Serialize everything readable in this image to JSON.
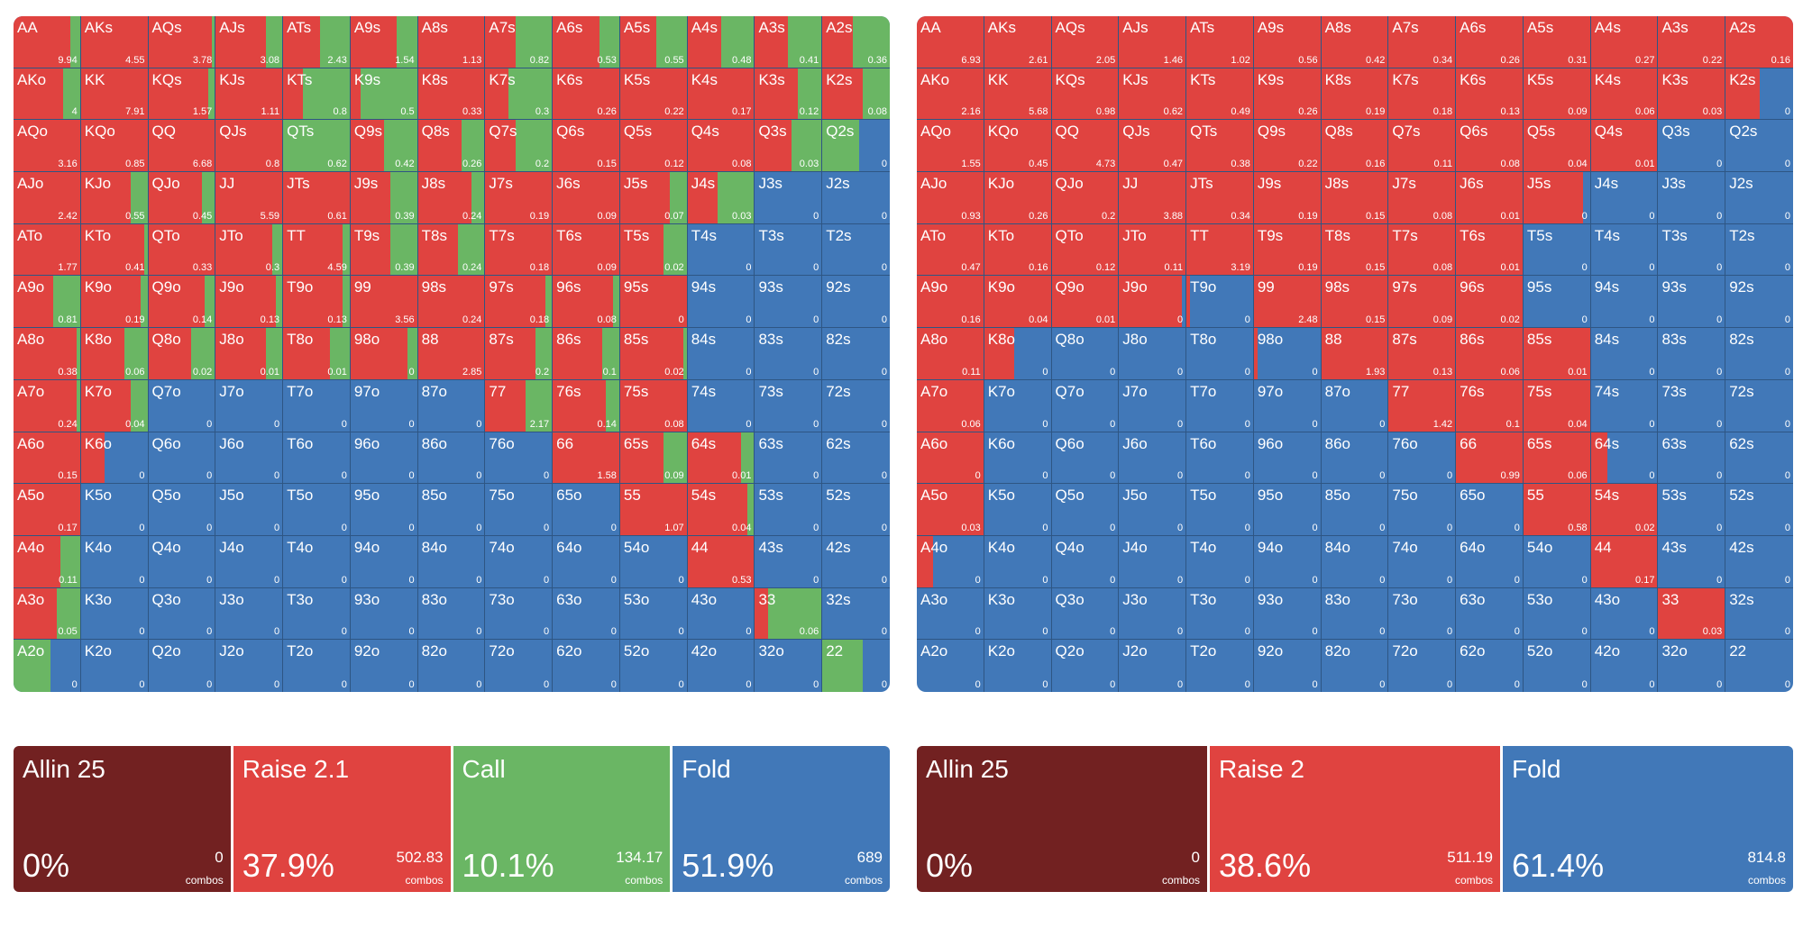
{
  "colors": {
    "allin": "#722121",
    "raise": "#e04340",
    "call": "#6ab664",
    "fold": "#4178b8"
  },
  "hands": [
    [
      "AA",
      "AKs",
      "AQs",
      "AJs",
      "ATs",
      "A9s",
      "A8s",
      "A7s",
      "A6s",
      "A5s",
      "A4s",
      "A3s",
      "A2s"
    ],
    [
      "AKo",
      "KK",
      "KQs",
      "KJs",
      "KTs",
      "K9s",
      "K8s",
      "K7s",
      "K6s",
      "K5s",
      "K4s",
      "K3s",
      "K2s"
    ],
    [
      "AQo",
      "KQo",
      "QQ",
      "QJs",
      "QTs",
      "Q9s",
      "Q8s",
      "Q7s",
      "Q6s",
      "Q5s",
      "Q4s",
      "Q3s",
      "Q2s"
    ],
    [
      "AJo",
      "KJo",
      "QJo",
      "JJ",
      "JTs",
      "J9s",
      "J8s",
      "J7s",
      "J6s",
      "J5s",
      "J4s",
      "J3s",
      "J2s"
    ],
    [
      "ATo",
      "KTo",
      "QTo",
      "JTo",
      "TT",
      "T9s",
      "T8s",
      "T7s",
      "T6s",
      "T5s",
      "T4s",
      "T3s",
      "T2s"
    ],
    [
      "A9o",
      "K9o",
      "Q9o",
      "J9o",
      "T9o",
      "99",
      "98s",
      "97s",
      "96s",
      "95s",
      "94s",
      "93s",
      "92s"
    ],
    [
      "A8o",
      "K8o",
      "Q8o",
      "J8o",
      "T8o",
      "98o",
      "88",
      "87s",
      "86s",
      "85s",
      "84s",
      "83s",
      "82s"
    ],
    [
      "A7o",
      "K7o",
      "Q7o",
      "J7o",
      "T7o",
      "97o",
      "87o",
      "77",
      "76s",
      "75s",
      "74s",
      "73s",
      "72s"
    ],
    [
      "A6o",
      "K6o",
      "Q6o",
      "J6o",
      "T6o",
      "96o",
      "86o",
      "76o",
      "66",
      "65s",
      "64s",
      "63s",
      "62s"
    ],
    [
      "A5o",
      "K5o",
      "Q5o",
      "J5o",
      "T5o",
      "95o",
      "85o",
      "75o",
      "65o",
      "55",
      "54s",
      "53s",
      "52s"
    ],
    [
      "A4o",
      "K4o",
      "Q4o",
      "J4o",
      "T4o",
      "94o",
      "84o",
      "74o",
      "64o",
      "54o",
      "44",
      "43s",
      "42s"
    ],
    [
      "A3o",
      "K3o",
      "Q3o",
      "J3o",
      "T3o",
      "93o",
      "83o",
      "73o",
      "63o",
      "53o",
      "43o",
      "33",
      "32s"
    ],
    [
      "A2o",
      "K2o",
      "Q2o",
      "J2o",
      "T2o",
      "92o",
      "82o",
      "72o",
      "62o",
      "52o",
      "42o",
      "32o",
      "22"
    ]
  ],
  "left": {
    "values": [
      [
        "9.94",
        "4.55",
        "3.78",
        "3.08",
        "2.43",
        "1.54",
        "1.13",
        "0.82",
        "0.53",
        "0.55",
        "0.48",
        "0.41",
        "0.36"
      ],
      [
        "4",
        "7.91",
        "1.57",
        "1.11",
        "0.8",
        "0.5",
        "0.33",
        "0.3",
        "0.26",
        "0.22",
        "0.17",
        "0.12",
        "0.08"
      ],
      [
        "3.16",
        "0.85",
        "6.68",
        "0.8",
        "0.62",
        "0.42",
        "0.26",
        "0.2",
        "0.15",
        "0.12",
        "0.08",
        "0.03",
        "0"
      ],
      [
        "2.42",
        "0.55",
        "0.45",
        "5.59",
        "0.61",
        "0.39",
        "0.24",
        "0.19",
        "0.09",
        "0.07",
        "0.03",
        "0",
        "0"
      ],
      [
        "1.77",
        "0.41",
        "0.33",
        "0.3",
        "4.59",
        "0.39",
        "0.24",
        "0.18",
        "0.09",
        "0.02",
        "0",
        "0",
        "0"
      ],
      [
        "0.81",
        "0.19",
        "0.14",
        "0.13",
        "0.13",
        "3.56",
        "0.24",
        "0.18",
        "0.08",
        "0",
        "0",
        "0",
        "0"
      ],
      [
        "0.38",
        "0.06",
        "0.02",
        "0.01",
        "0.01",
        "0",
        "2.85",
        "0.2",
        "0.1",
        "0.02",
        "0",
        "0",
        "0"
      ],
      [
        "0.24",
        "0.04",
        "0",
        "0",
        "0",
        "0",
        "0",
        "2.17",
        "0.14",
        "0.08",
        "0",
        "0",
        "0"
      ],
      [
        "0.15",
        "0",
        "0",
        "0",
        "0",
        "0",
        "0",
        "0",
        "1.58",
        "0.09",
        "0.01",
        "0",
        "0"
      ],
      [
        "0.17",
        "0",
        "0",
        "0",
        "0",
        "0",
        "0",
        "0",
        "0",
        "1.07",
        "0.04",
        "0",
        "0"
      ],
      [
        "0.11",
        "0",
        "0",
        "0",
        "0",
        "0",
        "0",
        "0",
        "0",
        "0",
        "0.53",
        "0",
        "0"
      ],
      [
        "0.05",
        "0",
        "0",
        "0",
        "0",
        "0",
        "0",
        "0",
        "0",
        "0",
        "0",
        "0.06",
        "0"
      ],
      [
        "0",
        "0",
        "0",
        "0",
        "0",
        "0",
        "0",
        "0",
        "0",
        "0",
        "0",
        "0",
        "0"
      ]
    ],
    "freqs": [
      [
        [
          0.85,
          0.15
        ],
        [
          1,
          0
        ],
        [
          0.95,
          0.05
        ],
        [
          0.75,
          0.25
        ],
        [
          0.55,
          0.45
        ],
        [
          0.7,
          0.3
        ],
        [
          1,
          0
        ],
        [
          0.45,
          0.55
        ],
        [
          0.7,
          0.3
        ],
        [
          0.55,
          0.45
        ],
        [
          0.5,
          0.5
        ],
        [
          0.5,
          0.5
        ],
        [
          0.45,
          0.55
        ]
      ],
      [
        [
          0.75,
          0.25
        ],
        [
          1,
          0
        ],
        [
          0.9,
          0.1
        ],
        [
          1,
          0
        ],
        [
          0.3,
          0.7
        ],
        [
          0.15,
          0.85
        ],
        [
          1,
          0
        ],
        [
          0.35,
          0.65
        ],
        [
          1,
          0
        ],
        [
          1,
          0
        ],
        [
          1,
          0
        ],
        [
          0.65,
          0.35
        ],
        [
          0.6,
          0.4
        ]
      ],
      [
        [
          1,
          0
        ],
        [
          1,
          0
        ],
        [
          1,
          0
        ],
        [
          1,
          0
        ],
        [
          0,
          1
        ],
        [
          0.5,
          0.5
        ],
        [
          0.65,
          0.35
        ],
        [
          0.45,
          0.55
        ],
        [
          1,
          0
        ],
        [
          1,
          0
        ],
        [
          1,
          0
        ],
        [
          0.55,
          0.45
        ],
        [
          0,
          0.55
        ]
      ],
      [
        [
          1,
          0
        ],
        [
          0.75,
          0.25
        ],
        [
          0.8,
          0.2
        ],
        [
          1,
          0
        ],
        [
          1,
          0
        ],
        [
          0.6,
          0.4
        ],
        [
          0.8,
          0.2
        ],
        [
          1,
          0
        ],
        [
          1,
          0
        ],
        [
          0.75,
          0.25
        ],
        [
          0.45,
          0.55
        ],
        [
          0,
          0
        ],
        [
          0,
          0
        ]
      ],
      [
        [
          1,
          0
        ],
        [
          0.95,
          0.05
        ],
        [
          1,
          0
        ],
        [
          0.85,
          0.15
        ],
        [
          0.9,
          0.1
        ],
        [
          0.6,
          0.4
        ],
        [
          0.6,
          0.4
        ],
        [
          1,
          0
        ],
        [
          1,
          0
        ],
        [
          0.65,
          0.35
        ],
        [
          0,
          0
        ],
        [
          0,
          0
        ],
        [
          0,
          0
        ]
      ],
      [
        [
          0.6,
          0.4
        ],
        [
          0.9,
          0.1
        ],
        [
          0.85,
          0.15
        ],
        [
          0.9,
          0.1
        ],
        [
          0.9,
          0.1
        ],
        [
          1,
          0
        ],
        [
          1,
          0
        ],
        [
          0.9,
          0.1
        ],
        [
          0.9,
          0.1
        ],
        [
          1,
          0
        ],
        [
          0,
          0
        ],
        [
          0,
          0
        ],
        [
          0,
          0
        ]
      ],
      [
        [
          0.95,
          0.05
        ],
        [
          0.65,
          0.35
        ],
        [
          0.65,
          0.35
        ],
        [
          0.75,
          0.25
        ],
        [
          0.7,
          0.3
        ],
        [
          0.85,
          0.15
        ],
        [
          1,
          0
        ],
        [
          0.75,
          0.25
        ],
        [
          0.75,
          0.25
        ],
        [
          0.95,
          0.05
        ],
        [
          0,
          0
        ],
        [
          0,
          0
        ],
        [
          0,
          0
        ]
      ],
      [
        [
          0.95,
          0.05
        ],
        [
          0.75,
          0.25
        ],
        [
          0,
          0
        ],
        [
          0,
          0
        ],
        [
          0,
          0
        ],
        [
          0,
          0
        ],
        [
          0,
          0
        ],
        [
          0.6,
          0.4
        ],
        [
          0.8,
          0.2
        ],
        [
          1,
          0
        ],
        [
          0,
          0
        ],
        [
          0,
          0
        ],
        [
          0,
          0
        ]
      ],
      [
        [
          1,
          0
        ],
        [
          0.35,
          0
        ],
        [
          0,
          0
        ],
        [
          0,
          0
        ],
        [
          0,
          0
        ],
        [
          0,
          0
        ],
        [
          0,
          0
        ],
        [
          0,
          0
        ],
        [
          1,
          0
        ],
        [
          0.65,
          0.35
        ],
        [
          0.8,
          0.2
        ],
        [
          0,
          0
        ],
        [
          0,
          0
        ]
      ],
      [
        [
          1,
          0
        ],
        [
          0,
          0
        ],
        [
          0,
          0
        ],
        [
          0,
          0
        ],
        [
          0,
          0
        ],
        [
          0,
          0
        ],
        [
          0,
          0
        ],
        [
          0,
          0
        ],
        [
          0,
          0
        ],
        [
          1,
          0
        ],
        [
          0.9,
          0.1
        ],
        [
          0,
          0
        ],
        [
          0,
          0
        ]
      ],
      [
        [
          0.7,
          0.3
        ],
        [
          0,
          0
        ],
        [
          0,
          0
        ],
        [
          0,
          0
        ],
        [
          0,
          0
        ],
        [
          0,
          0
        ],
        [
          0,
          0
        ],
        [
          0,
          0
        ],
        [
          0,
          0
        ],
        [
          0,
          0
        ],
        [
          1,
          0
        ],
        [
          0,
          0
        ],
        [
          0,
          0
        ]
      ],
      [
        [
          0.65,
          0.35
        ],
        [
          0,
          0
        ],
        [
          0,
          0
        ],
        [
          0,
          0
        ],
        [
          0,
          0
        ],
        [
          0,
          0
        ],
        [
          0,
          0
        ],
        [
          0,
          0
        ],
        [
          0,
          0
        ],
        [
          0,
          0
        ],
        [
          0,
          0
        ],
        [
          0.2,
          0.8
        ],
        [
          0,
          0
        ]
      ],
      [
        [
          0,
          0.55
        ],
        [
          0,
          0
        ],
        [
          0,
          0
        ],
        [
          0,
          0
        ],
        [
          0,
          0
        ],
        [
          0,
          0
        ],
        [
          0,
          0
        ],
        [
          0,
          0
        ],
        [
          0,
          0
        ],
        [
          0,
          0
        ],
        [
          0,
          0
        ],
        [
          0,
          0
        ],
        [
          0,
          0.6
        ]
      ]
    ],
    "actions": [
      {
        "key": "allin",
        "label": "Allin 25",
        "pct": "0%",
        "combos": "0",
        "unit": "combos"
      },
      {
        "key": "raise",
        "label": "Raise 2.1",
        "pct": "37.9%",
        "combos": "502.83",
        "unit": "combos"
      },
      {
        "key": "call",
        "label": "Call",
        "pct": "10.1%",
        "combos": "134.17",
        "unit": "combos"
      },
      {
        "key": "fold",
        "label": "Fold",
        "pct": "51.9%",
        "combos": "689",
        "unit": "combos"
      }
    ]
  },
  "right": {
    "values": [
      [
        "6.93",
        "2.61",
        "2.05",
        "1.46",
        "1.02",
        "0.56",
        "0.42",
        "0.34",
        "0.26",
        "0.31",
        "0.27",
        "0.22",
        "0.16"
      ],
      [
        "2.16",
        "5.68",
        "0.98",
        "0.62",
        "0.49",
        "0.26",
        "0.19",
        "0.18",
        "0.13",
        "0.09",
        "0.06",
        "0.03",
        "0"
      ],
      [
        "1.55",
        "0.45",
        "4.73",
        "0.47",
        "0.38",
        "0.22",
        "0.16",
        "0.11",
        "0.08",
        "0.04",
        "0.01",
        "0",
        "0"
      ],
      [
        "0.93",
        "0.26",
        "0.2",
        "3.88",
        "0.34",
        "0.19",
        "0.15",
        "0.08",
        "0.01",
        "0",
        "0",
        "0",
        "0"
      ],
      [
        "0.47",
        "0.16",
        "0.12",
        "0.11",
        "3.19",
        "0.19",
        "0.15",
        "0.08",
        "0.01",
        "0",
        "0",
        "0",
        "0"
      ],
      [
        "0.16",
        "0.04",
        "0.01",
        "0",
        "0",
        "2.48",
        "0.15",
        "0.09",
        "0.02",
        "0",
        "0",
        "0",
        "0"
      ],
      [
        "0.11",
        "0",
        "0",
        "0",
        "0",
        "0",
        "1.93",
        "0.13",
        "0.06",
        "0.01",
        "0",
        "0",
        "0"
      ],
      [
        "0.06",
        "0",
        "0",
        "0",
        "0",
        "0",
        "0",
        "1.42",
        "0.1",
        "0.04",
        "0",
        "0",
        "0"
      ],
      [
        "0",
        "0",
        "0",
        "0",
        "0",
        "0",
        "0",
        "0",
        "0.99",
        "0.06",
        "0",
        "0",
        "0"
      ],
      [
        "0.03",
        "0",
        "0",
        "0",
        "0",
        "0",
        "0",
        "0",
        "0",
        "0.58",
        "0.02",
        "0",
        "0"
      ],
      [
        "0",
        "0",
        "0",
        "0",
        "0",
        "0",
        "0",
        "0",
        "0",
        "0",
        "0.17",
        "0",
        "0"
      ],
      [
        "0",
        "0",
        "0",
        "0",
        "0",
        "0",
        "0",
        "0",
        "0",
        "0",
        "0",
        "0.03",
        "0"
      ],
      [
        "0",
        "0",
        "0",
        "0",
        "0",
        "0",
        "0",
        "0",
        "0",
        "0",
        "0",
        "0",
        "0"
      ]
    ],
    "raise": [
      [
        1,
        1,
        1,
        1,
        1,
        1,
        1,
        1,
        1,
        1,
        1,
        1,
        1
      ],
      [
        1,
        1,
        1,
        1,
        1,
        1,
        1,
        1,
        1,
        1,
        1,
        1,
        0.5
      ],
      [
        1,
        1,
        1,
        1,
        1,
        1,
        1,
        1,
        1,
        1,
        1,
        0,
        0
      ],
      [
        1,
        1,
        1,
        1,
        1,
        1,
        1,
        1,
        1,
        0.9,
        0,
        0,
        0
      ],
      [
        1,
        1,
        1,
        1,
        1,
        1,
        1,
        1,
        1,
        0,
        0,
        0,
        0
      ],
      [
        1,
        1,
        1,
        0.95,
        0.05,
        1,
        1,
        1,
        1,
        0,
        0,
        0,
        0
      ],
      [
        1,
        0.45,
        0,
        0,
        0,
        0.05,
        1,
        1,
        1,
        1,
        0,
        0,
        0
      ],
      [
        1,
        0,
        0,
        0,
        0,
        0,
        0,
        1,
        1,
        1,
        0,
        0,
        0
      ],
      [
        1,
        0,
        0,
        0,
        0,
        0,
        0,
        0,
        1,
        1,
        0.25,
        0,
        0
      ],
      [
        1,
        0,
        0,
        0,
        0,
        0,
        0,
        0,
        0,
        1,
        1,
        0,
        0
      ],
      [
        0.25,
        0,
        0,
        0,
        0,
        0,
        0,
        0,
        0,
        0,
        1,
        0,
        0
      ],
      [
        0,
        0,
        0,
        0,
        0,
        0,
        0,
        0,
        0,
        0,
        0,
        1,
        0
      ],
      [
        0,
        0,
        0,
        0,
        0,
        0,
        0,
        0,
        0,
        0,
        0,
        0,
        0
      ]
    ],
    "actions": [
      {
        "key": "allin",
        "label": "Allin 25",
        "pct": "0%",
        "combos": "0",
        "unit": "combos"
      },
      {
        "key": "raise",
        "label": "Raise 2",
        "pct": "38.6%",
        "combos": "511.19",
        "unit": "combos"
      },
      {
        "key": "fold",
        "label": "Fold",
        "pct": "61.4%",
        "combos": "814.8",
        "unit": "combos"
      }
    ]
  }
}
